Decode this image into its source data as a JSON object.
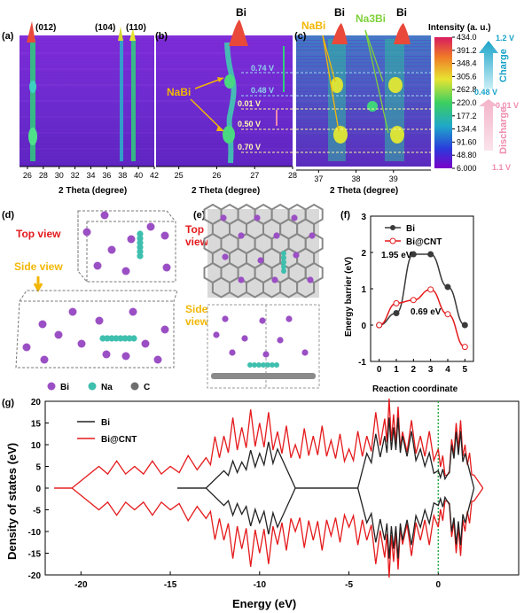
{
  "panels": {
    "a": "(a)",
    "b": "(b)",
    "c": "(c)",
    "d": "(d)",
    "e": "(e)",
    "f": "(f)",
    "g": "(g)"
  },
  "peaks_a": [
    "(012)",
    "(104)",
    "(110)"
  ],
  "label_bi": "Bi",
  "label_nabi": "NaBi",
  "label_na3bi": "Na3Bi",
  "two_theta": "2 Theta (degree)",
  "potentials": [
    "0.74 V",
    "0.48 V",
    "0.01 V",
    "0.50 V",
    "0.70 V"
  ],
  "colorbar": {
    "title": "Intensity (a. u.)",
    "ticks": [
      "434.0",
      "391.2",
      "348.4",
      "305.6",
      "262.8",
      "220.0",
      "177.2",
      "134.4",
      "91.60",
      "48.80",
      "6.000"
    ]
  },
  "charge_panel": {
    "v_top": "1.2 V",
    "charge": "Charge",
    "v_mid": "0.48 V",
    "v_mid2": "0.01 V",
    "discharge": "Discharge",
    "v_bot": "1.1 V"
  },
  "structure": {
    "top_view": "Top view",
    "side_view": "Side view",
    "top_view_e": [
      "Top",
      "view"
    ],
    "side_view_e": [
      "Side",
      "view"
    ],
    "legend": [
      "Bi",
      "Na",
      "C"
    ]
  },
  "colors": {
    "bi_atom": "#9b4fc4",
    "na_atom": "#3fbfae",
    "c_atom": "#6e6e6e",
    "red": "#e41a1c",
    "yellow": "#f2b705",
    "green": "#7fd13b",
    "cyan": "#1aa3c8",
    "pink": "#f08cb0"
  },
  "chart_data": [
    {
      "panel": "a",
      "type": "heatmap",
      "xlabel": "2 Theta (degree)",
      "x_ticks": [
        26,
        28,
        30,
        32,
        34,
        36,
        38,
        40,
        42
      ],
      "xlim": [
        25,
        42
      ],
      "peaks": [
        {
          "label": "(012)",
          "x": 27.1
        },
        {
          "label": "(104)",
          "x": 37.9
        },
        {
          "label": "(110)",
          "x": 39.6
        }
      ]
    },
    {
      "panel": "b",
      "type": "heatmap",
      "xlabel": "2 Theta (degree)",
      "x_ticks": [
        25,
        26,
        27,
        28
      ],
      "xlim": [
        24.4,
        28
      ]
    },
    {
      "panel": "c",
      "type": "heatmap",
      "xlabel": "2 Theta (degree)",
      "x_ticks": [
        37,
        38,
        39
      ],
      "xlim": [
        36.4,
        40
      ]
    },
    {
      "panel": "f",
      "type": "line",
      "xlabel": "Reaction coordinate",
      "ylabel": "Energy barrier (eV)",
      "xlim": [
        -0.5,
        5.5
      ],
      "ylim": [
        -1,
        3
      ],
      "x_ticks": [
        0,
        1,
        2,
        3,
        4,
        5
      ],
      "y_ticks": [
        -1,
        0,
        1,
        2,
        3
      ],
      "legend": "top-right",
      "series": [
        {
          "name": "Bi",
          "color": "#3a3a3a",
          "x": [
            0,
            1,
            2,
            3,
            4,
            5
          ],
          "y": [
            0,
            0.33,
            1.95,
            1.95,
            1.05,
            0
          ]
        },
        {
          "name": "Bi@CNT",
          "color": "#e41a1c",
          "x": [
            0,
            1,
            2,
            3,
            4,
            5
          ],
          "y": [
            0,
            0.6,
            0.69,
            0.98,
            0.3,
            -0.6
          ]
        }
      ],
      "annotations": [
        "1.95 eV",
        "0.69 eV"
      ]
    },
    {
      "panel": "g",
      "type": "line",
      "xlabel": "Energy (eV)",
      "ylabel": "Density of states (eV)",
      "xlim": [
        -22,
        4.5
      ],
      "ylim": [
        -20,
        20
      ],
      "x_ticks": [
        -20,
        -15,
        -10,
        -5,
        0
      ],
      "y_ticks": [
        20,
        15,
        10,
        5,
        0,
        -5,
        -10,
        -15,
        -20
      ],
      "fermi_level": 0,
      "legend": "top-left",
      "series": [
        {
          "name": "Bi",
          "color": "#222222",
          "x": [
            -14.6,
            -13.0,
            -12.0,
            -11.0,
            -10.0,
            -9.0,
            -8.0,
            -4.5,
            -4.0,
            -3.0,
            -2.5,
            -2.0,
            -1.0,
            0,
            0.5,
            1.0,
            1.5,
            2.0
          ],
          "y": [
            0,
            0,
            4,
            6,
            8,
            9,
            0,
            0,
            8,
            12,
            14,
            12,
            9,
            4,
            3,
            13,
            8,
            0
          ]
        },
        {
          "name": "Bi@CNT",
          "color": "#e41a1c",
          "x": [
            -21.5,
            -20.5,
            -19,
            -17,
            -15,
            -13,
            -12,
            -11,
            -10,
            -9,
            -8,
            -7,
            -6,
            -5,
            -4,
            -3,
            -2.5,
            -2,
            -1,
            0,
            0.5,
            1.0,
            1.5,
            2.0,
            2.5
          ],
          "y": [
            0,
            0,
            5,
            5,
            5,
            7,
            12,
            14,
            15,
            13,
            10,
            12,
            11,
            9,
            12,
            16,
            17,
            13,
            12,
            9,
            3,
            15,
            10,
            3,
            0
          ]
        }
      ]
    }
  ]
}
